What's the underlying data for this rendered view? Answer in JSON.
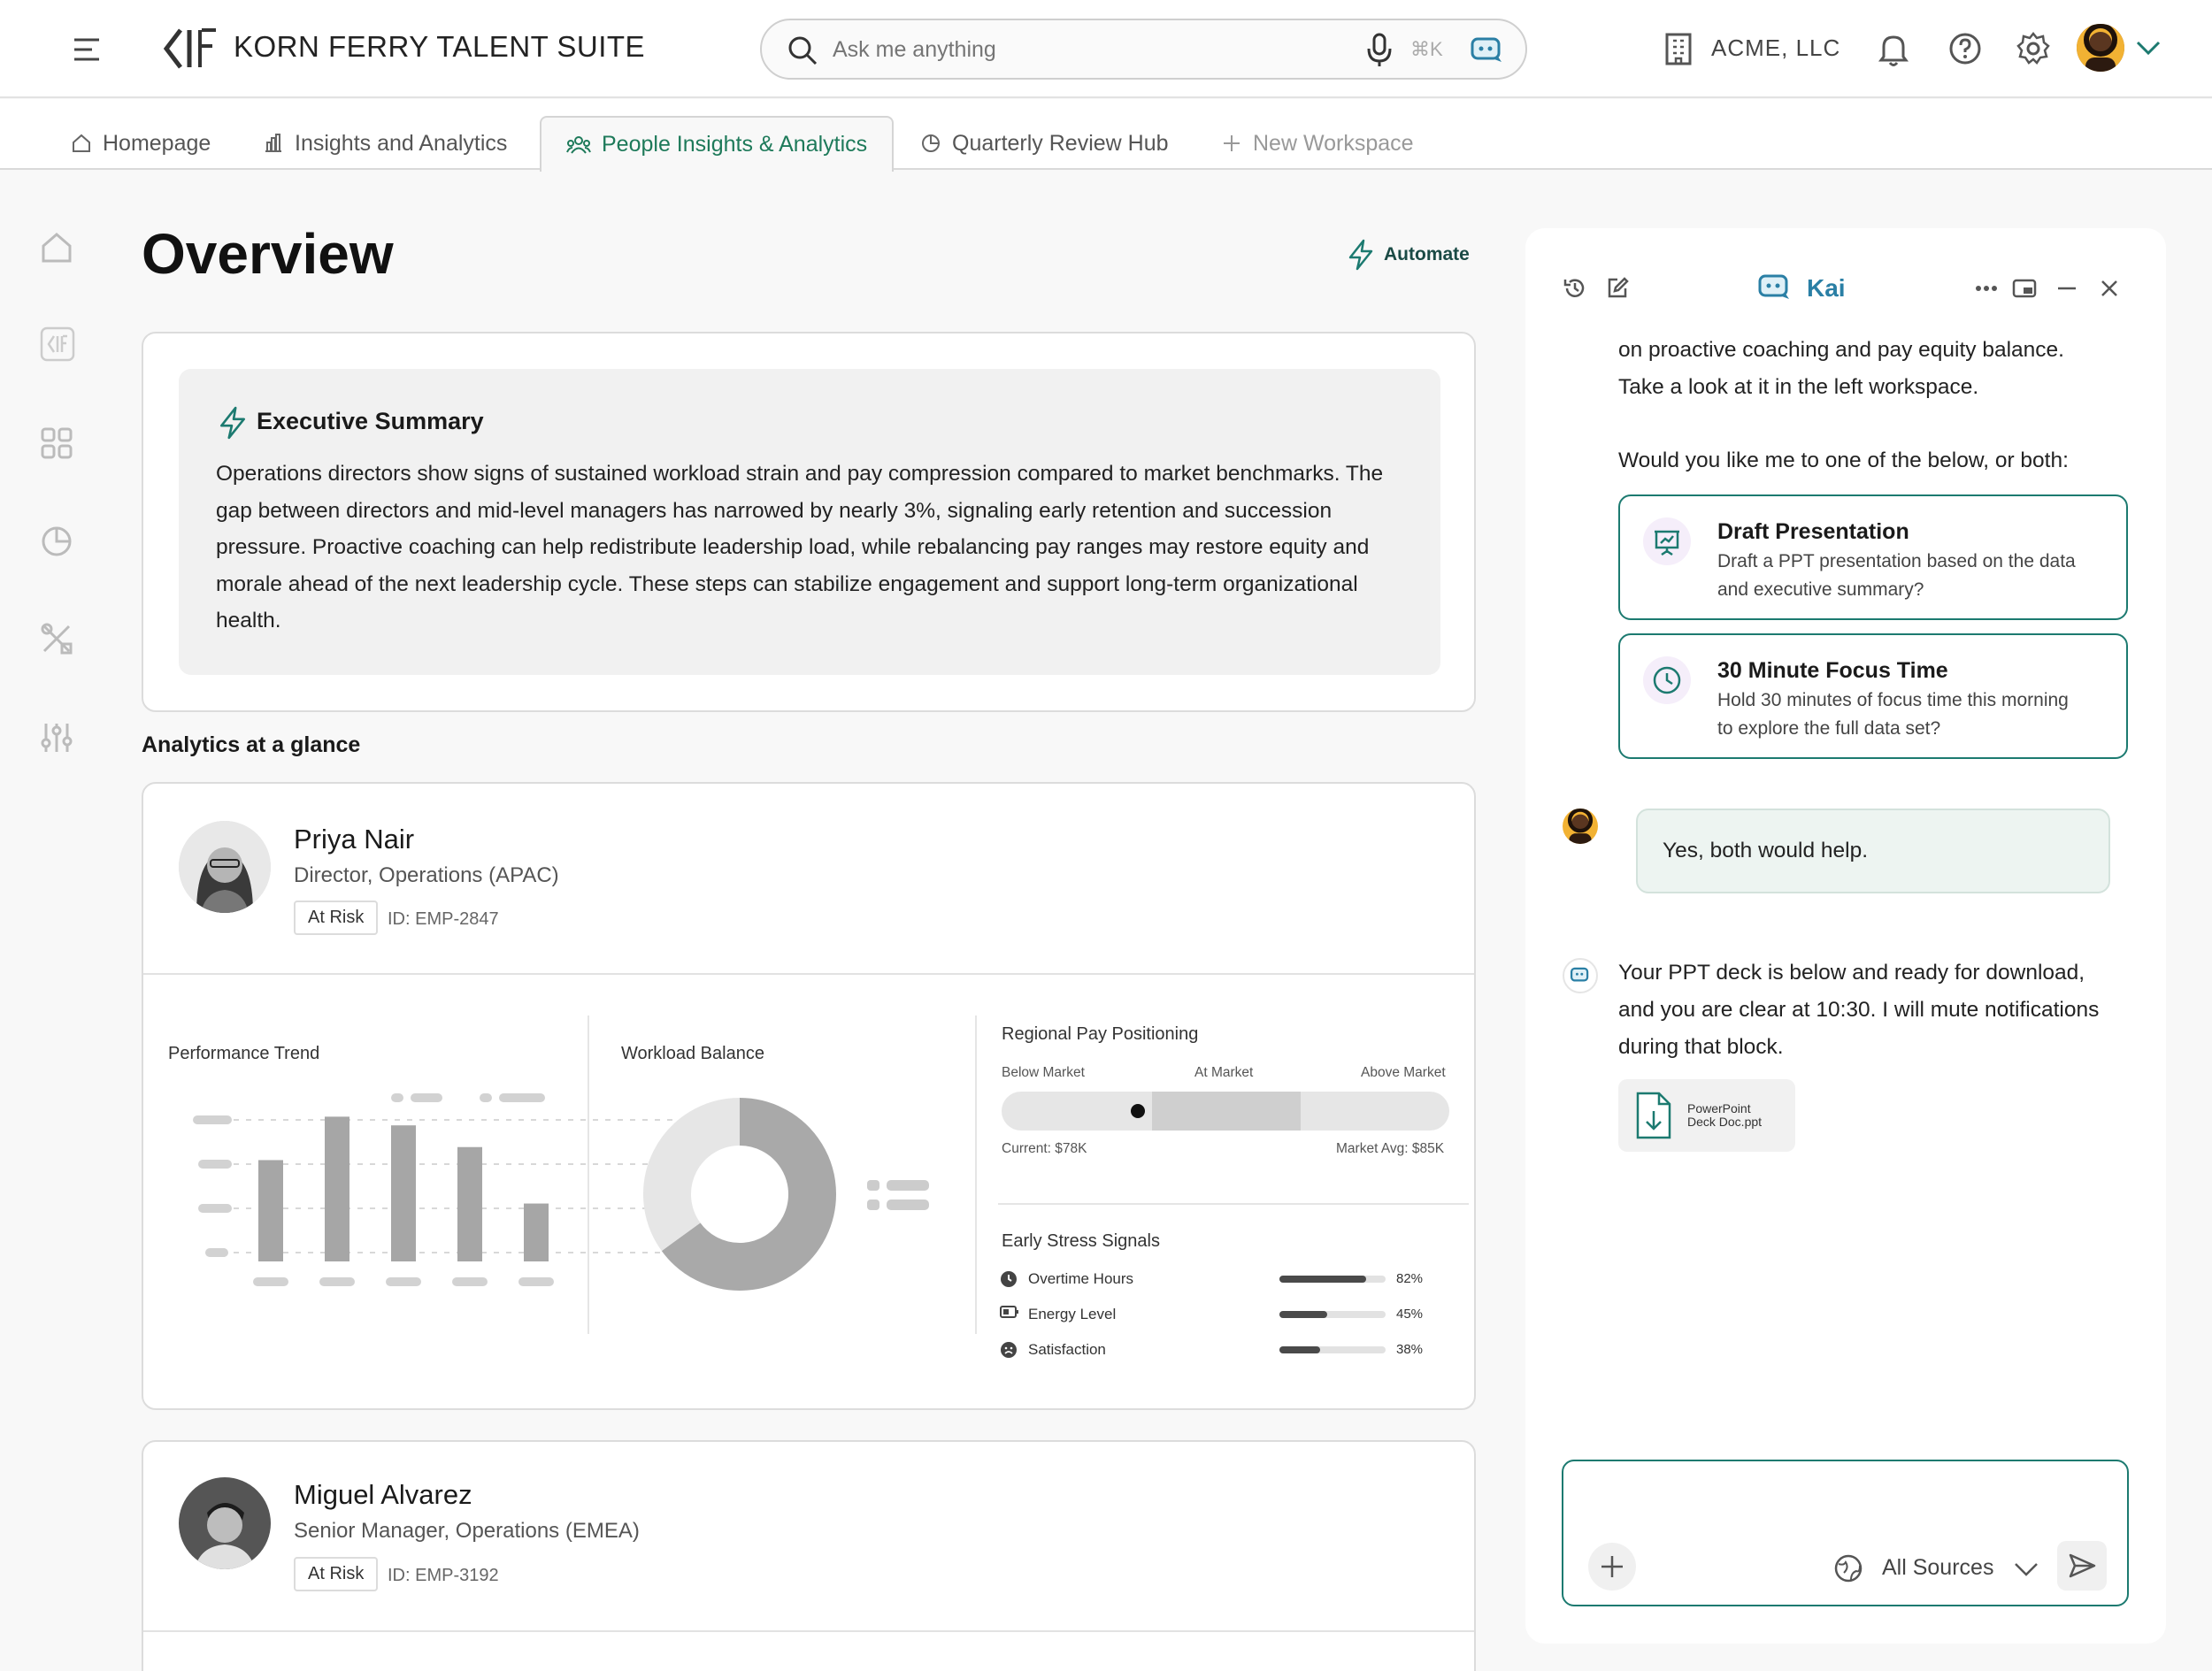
{
  "app": {
    "title": "KORN FERRY TALENT SUITE",
    "org": "ACME, LLC"
  },
  "search": {
    "placeholder": "Ask me anything",
    "shortcut": "⌘K"
  },
  "tabs": [
    {
      "label": "Homepage",
      "icon": "home-icon"
    },
    {
      "label": "Insights and Analytics",
      "icon": "bar-chart-icon"
    },
    {
      "label": "People Insights & Analytics",
      "icon": "people-icon",
      "active": true
    },
    {
      "label": "Quarterly Review Hub",
      "icon": "pie-icon"
    },
    {
      "label": "New Workspace",
      "icon": "plus-icon"
    }
  ],
  "page": {
    "title": "Overview",
    "automate_label": "Automate"
  },
  "summary": {
    "title": "Executive Summary",
    "body": "Operations directors show signs of sustained workload strain and pay compression compared to market benchmarks. The gap between directors and mid-level managers has narrowed by nearly 3%, signaling early retention and succession pressure. Proactive coaching can help redistribute leadership load, while rebalancing pay ranges may restore equity and morale ahead of the next leadership cycle. These steps can stabilize engagement and support long-term organizational health."
  },
  "analytics_heading": "Analytics at a glance",
  "employees": [
    {
      "name": "Priya Nair",
      "role": "Director, Operations (APAC)",
      "status": "At Risk",
      "id": "ID: EMP-2847"
    },
    {
      "name": "Miguel Alvarez",
      "role": "Senior Manager, Operations (EMEA)",
      "status": "At Risk",
      "id": "ID: EMP-3192"
    }
  ],
  "widgets": {
    "performance_title": "Performance Trend",
    "workload_title": "Workload Balance",
    "pay_title": "Regional Pay Positioning",
    "pay_labels": {
      "below": "Below Market",
      "at": "At Market",
      "above": "Above Market",
      "current": "Current: $78K",
      "market": "Market Avg: $85K"
    },
    "stress_title": "Early Stress Signals",
    "stress": [
      {
        "label": "Overtime Hours",
        "value": "82%",
        "pct": 0.82,
        "icon": "clock-icon"
      },
      {
        "label": "Energy Level",
        "value": "45%",
        "pct": 0.45,
        "icon": "battery-icon"
      },
      {
        "label": "Satisfaction",
        "value": "38%",
        "pct": 0.38,
        "icon": "sad-face-icon"
      }
    ]
  },
  "chart_data": [
    {
      "type": "bar",
      "title": "Performance Trend",
      "categories": [
        "",
        "",
        "",
        "",
        ""
      ],
      "values": [
        70,
        100,
        94,
        79,
        40
      ],
      "ylim": [
        0,
        110
      ]
    },
    {
      "type": "pie",
      "title": "Workload Balance",
      "values": [
        65,
        35
      ],
      "colors": [
        "#a9a9a9",
        "#e6e6e6"
      ]
    }
  ],
  "kai": {
    "title": "Kai",
    "messages": {
      "intro_1": "on proactive coaching and pay equity balance.",
      "intro_2": "Take a look at it in the left workspace.",
      "question": "Would you like me to one of the below, or both:",
      "user_reply": "Yes, both would help.",
      "answer_1": "Your PPT deck is below and ready for download,",
      "answer_2": "and you are clear at 10:30. I will mute notifications",
      "answer_3": "during that block."
    },
    "options": [
      {
        "title": "Draft Presentation",
        "line1": "Draft a PPT presentation based on the data",
        "line2": "and executive summary?",
        "icon": "presentation-icon"
      },
      {
        "title": "30 Minute Focus Time",
        "line1": "Hold 30 minutes of focus time this morning",
        "line2": "to explore the full data set?",
        "icon": "clock-icon"
      }
    ],
    "file": {
      "line1": "PowerPoint",
      "line2": "Deck Doc.ppt"
    },
    "sources_label": "All Sources"
  },
  "colors": {
    "accent": "#1c7a70",
    "kai_blue": "#2a7fa5",
    "active_tab": "#1e7a5a"
  }
}
